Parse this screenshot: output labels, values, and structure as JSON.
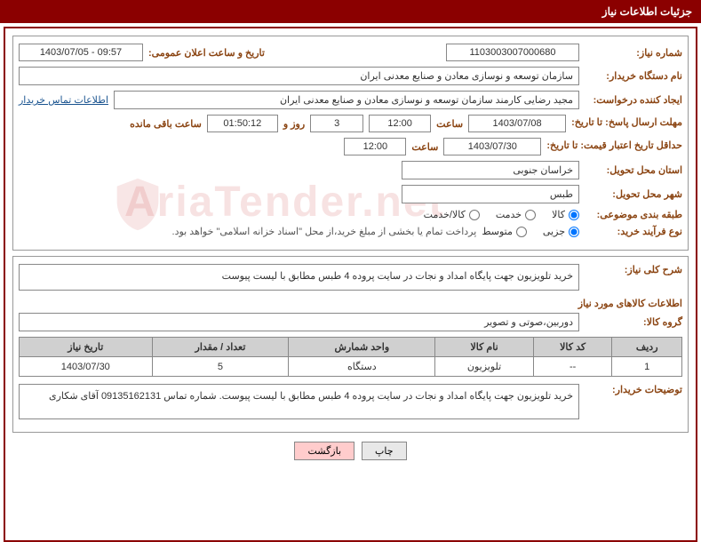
{
  "header_title": "جزئیات اطلاعات نیاز",
  "labels": {
    "need_number": "شماره نیاز:",
    "announce_datetime": "تاریخ و ساعت اعلان عمومی:",
    "buyer_org": "نام دستگاه خریدار:",
    "request_creator": "ایجاد کننده درخواست:",
    "respond_deadline": "مهلت ارسال پاسخ: تا تاریخ:",
    "hour": "ساعت",
    "days_and": "روز و",
    "remaining": "ساعت باقی مانده",
    "price_validity": "حداقل تاریخ اعتبار قیمت: تا تاریخ:",
    "delivery_province": "استان محل تحویل:",
    "delivery_city": "شهر محل تحویل:",
    "subject_category": "طبقه بندی موضوعی:",
    "purchase_process": "نوع فرآیند خرید:",
    "need_general_desc": "شرح کلی نیاز:",
    "goods_info": "اطلاعات کالاهای مورد نیاز",
    "goods_group": "گروه کالا:",
    "buyer_notes": "توضیحات خریدار:",
    "contact_link": "اطلاعات تماس خریدار"
  },
  "values": {
    "need_number": "1103003007000680",
    "announce_datetime": "1403/07/05 - 09:57",
    "buyer_org": "سازمان توسعه و نوسازی معادن و صنایع معدنی ایران",
    "request_creator": "مجید رضایی  کارمند  سازمان توسعه و نوسازی معادن و صنایع معدنی ایران",
    "respond_date": "1403/07/08",
    "respond_hour": "12:00",
    "remaining_days": "3",
    "remaining_time": "01:50:12",
    "price_validity_date": "1403/07/30",
    "price_validity_hour": "12:00",
    "delivery_province": "خراسان جنوبی",
    "delivery_city": "طبس",
    "general_desc": "خرید تلویزیون جهت پایگاه امداد و نجات در سایت پروده 4 طبس مطابق با لیست پیوست",
    "goods_group": "دوربین،صوتی و تصویر",
    "buyer_notes": "خرید تلویزیون جهت پایگاه امداد و نجات در سایت پروده 4 طبس مطابق با لیست پیوست. شماره تماس 09135162131 آقای شکاری"
  },
  "radios": {
    "category": {
      "goods": "کالا",
      "service": "خدمت",
      "goods_service": "کالا/خدمت",
      "selected": "goods"
    },
    "process": {
      "partial": "جزیی",
      "medium": "متوسط",
      "selected": "partial"
    }
  },
  "process_note": "پرداخت تمام یا بخشی از مبلغ خرید،از محل \"اسناد خزانه اسلامی\" خواهد بود.",
  "table": {
    "columns": [
      "ردیف",
      "کد کالا",
      "نام کالا",
      "واحد شمارش",
      "تعداد / مقدار",
      "تاریخ نیاز"
    ],
    "rows": [
      [
        "1",
        "--",
        "تلویزیون",
        "دستگاه",
        "5",
        "1403/07/30"
      ]
    ]
  },
  "buttons": {
    "print": "چاپ",
    "back": "بازگشت"
  },
  "watermark_text": "AriaTender.net"
}
